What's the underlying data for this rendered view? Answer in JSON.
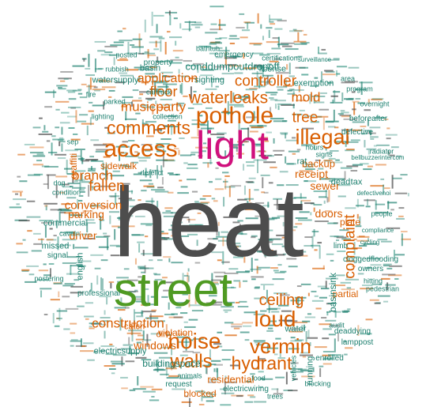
{
  "colors": {
    "gray": "#4d4d4d",
    "green": "#4f9a22",
    "magenta": "#d0107c",
    "orange": "#d95f02",
    "teal": "#1b7f6e"
  },
  "words": {
    "heat": "heat",
    "street": "street",
    "light": "light",
    "pothole": "pothole",
    "access": "access",
    "comments": "comments",
    "waterleaks": "waterleaks",
    "noise": "noise",
    "vermin": "vermin",
    "walls": "walls",
    "hydrant": "hydrant",
    "loud": "loud",
    "ceiling": "ceiling",
    "illegal": "illegal",
    "tree": "tree",
    "application": "application",
    "controller": "controller",
    "musicparty": "musicparty",
    "floor": "floor",
    "mold": "mold",
    "complaint": "complaint",
    "construction": "construction",
    "windows": "windows",
    "residential": "residential",
    "fallen": "fallen",
    "branch": "branch",
    "conversion": "conversion",
    "parking": "parking",
    "driver": "driver",
    "sidewalk": "sidewalk",
    "graffiti": "graffiti",
    "sewer": "sewer",
    "receipt": "receipt",
    "doors": "doors",
    "backup": "backup",
    "plate": "plate",
    "partial": "partial",
    "blocked": "blocked",
    "cracked": "cracked",
    "violation": "violation",
    "catch": "catch",
    "dirty": "dirty",
    "buildingspace": "buildingspace",
    "condition": "condition",
    "basin": "basin",
    "basinsink": "basinsink",
    "limb": "limb",
    "water": "water",
    "running": "running",
    "english": "english",
    "electricsupply": "electricsupply",
    "watersupply": "watersupply",
    "conddumpoutdropoff": "conddumpoutdropoff",
    "sighting": "sighting",
    "license": "license",
    "property": "property",
    "emergency": "emergency",
    "exemption": "exemption",
    "defective": "defective",
    "tax": "tax",
    "dead": "dead",
    "commercial": "commercial",
    "missed": "missed",
    "signal": "signal",
    "professional": "professional",
    "request": "request",
    "electricwiring": "electricwiring",
    "lamppost": "lamppost",
    "cloggedflooding": "cloggedflooding",
    "deaddying": "deaddying",
    "enrolled": "enrolled",
    "owners": "owners",
    "audit": "audit",
    "radiator": "radiator",
    "overnight": "overnight",
    "beforeafter": "beforeafter",
    "program": "program",
    "area": "area",
    "bathtub": "bathtub",
    "certification": "certification",
    "rubbish": "rubbish",
    "cartruck": "cartruck",
    "collection": "collection",
    "lighting": "lighting",
    "posted": "posted",
    "hours": "hours",
    "signs": "signs",
    "rat": "rat",
    "cavein": "cavein",
    "animals": "animals",
    "vehicles": "vehicles",
    "blocking": "blocking",
    "trees": "trees",
    "food": "food",
    "fire": "fire",
    "parked": "parked",
    "dog": "dog",
    "posteringsign": "postering",
    "derelict": "derelict",
    "surveillance": "surveillance",
    "people": "people",
    "hitting": "hitting",
    "pedestrian": "pedestrian",
    "bellbuzzerintercom": "bellbuzzerintercom",
    "defectivenoi": "defectivenoi",
    "compliance": "compliance",
    "cycling": "cycling",
    "sep": "sep"
  }
}
